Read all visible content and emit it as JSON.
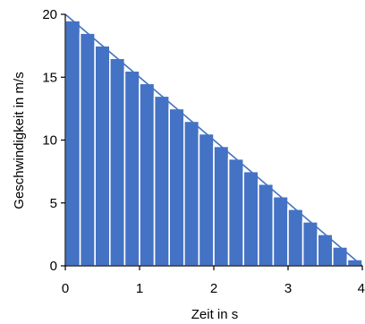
{
  "chart_data": {
    "type": "bar",
    "title": "",
    "xlabel": "Zeit in s",
    "ylabel": "Geschwindigkeit in m/s",
    "xlim": [
      0,
      4
    ],
    "ylim": [
      0,
      20
    ],
    "x_ticks": [
      0,
      1,
      2,
      3,
      4
    ],
    "y_ticks": [
      0,
      5,
      10,
      15,
      20
    ],
    "x_tick_labels": [
      "0",
      "1",
      "2",
      "3",
      "4"
    ],
    "y_tick_labels": [
      "0",
      "5",
      "10",
      "15",
      "20"
    ],
    "grid": false,
    "legend": "none",
    "bar_width": 0.2,
    "series": [
      {
        "type": "bar",
        "x": [
          0,
          0.2,
          0.4,
          0.6,
          0.8,
          1.0,
          1.2,
          1.4,
          1.6,
          1.8,
          2.0,
          2.2,
          2.4,
          2.6,
          2.8,
          3.0,
          3.2,
          3.4,
          3.6,
          3.8
        ],
        "values": [
          19.5,
          18.5,
          17.5,
          16.5,
          15.5,
          14.5,
          13.5,
          12.5,
          11.5,
          10.5,
          9.5,
          8.5,
          7.5,
          6.5,
          5.5,
          4.5,
          3.5,
          2.5,
          1.5,
          0.5
        ]
      },
      {
        "type": "line",
        "x": [
          0,
          4
        ],
        "values": [
          20,
          0
        ]
      }
    ],
    "colors": {
      "bar_fill": "#4472C4",
      "bar_edge": "#ffffff",
      "line": "#4472C4",
      "axis": "#000000"
    }
  }
}
